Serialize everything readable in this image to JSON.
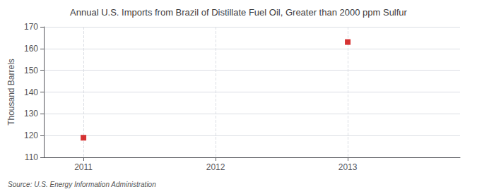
{
  "chart_data": {
    "type": "scatter",
    "title": "Annual U.S. Imports from Brazil of Distillate Fuel Oil, Greater than 2000 ppm Sulfur",
    "ylabel": "Thousand Barrels",
    "source": "Source: U.S. Energy Information Administration",
    "x": [
      2011,
      2013
    ],
    "values": [
      119,
      163
    ],
    "color": "#cc0000",
    "marker": "square",
    "xlim": [
      2010.7,
      2013.85
    ],
    "xticks": [
      2011,
      2012,
      2013
    ],
    "ylim": [
      110,
      170
    ],
    "yticks": [
      110,
      120,
      130,
      140,
      150,
      160,
      170
    ],
    "grid": true
  }
}
